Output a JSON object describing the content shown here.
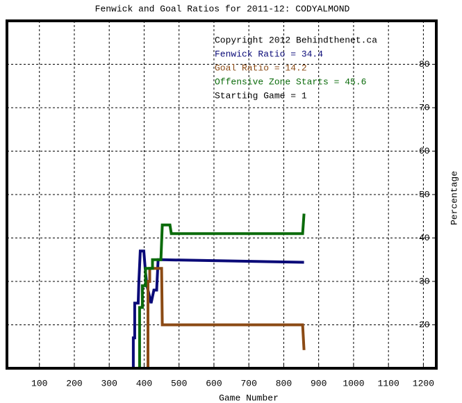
{
  "chart_data": {
    "type": "line",
    "title": "Fenwick and Goal Ratios for 2011-12: CODYALMOND",
    "x_label": "Game Number",
    "y_label": "Percentage",
    "xlim": [
      7,
      1237
    ],
    "ylim": [
      10,
      90
    ],
    "xticks": [
      100,
      200,
      300,
      400,
      500,
      600,
      700,
      800,
      900,
      1000,
      1100,
      1200
    ],
    "yticks": [
      20,
      30,
      40,
      50,
      60,
      70,
      80
    ],
    "grid": true,
    "series": [
      {
        "color": "#0a0a78",
        "x": [
          369,
          369,
          373,
          373,
          383,
          385,
          389,
          399,
          404,
          408,
          420,
          428,
          436,
          440,
          450,
          858
        ],
        "values": [
          10,
          17,
          17,
          25,
          25,
          30,
          37,
          37,
          32,
          29,
          25,
          28,
          28,
          35,
          35,
          34.4
        ]
      },
      {
        "color": "#8b4a14",
        "x": [
          411,
          411,
          416,
          416,
          450,
          452,
          854,
          858
        ],
        "values": [
          10,
          30,
          30,
          33,
          33,
          20,
          20,
          14.2
        ]
      },
      {
        "color": "#0b6b0b",
        "x": [
          387,
          387,
          395,
          395,
          404,
          404,
          424,
          424,
          448,
          452,
          474,
          478,
          854,
          858
        ],
        "values": [
          10,
          24,
          24,
          29,
          29,
          33,
          33,
          35,
          35,
          43,
          43,
          41,
          41,
          45.6
        ]
      }
    ],
    "annotations": [
      {
        "text": "Copyright 2012 Behindthenet.ca",
        "color": "#000000"
      },
      {
        "text": "Fenwick Ratio = 34.4",
        "color": "#0a0a78"
      },
      {
        "text": "Goal Ratio = 14.2",
        "color": "#8b4a14"
      },
      {
        "text": "Offensive Zone Starts = 45.6",
        "color": "#0b6b0b"
      },
      {
        "text": "Starting Game = 1",
        "color": "#000000"
      }
    ]
  }
}
